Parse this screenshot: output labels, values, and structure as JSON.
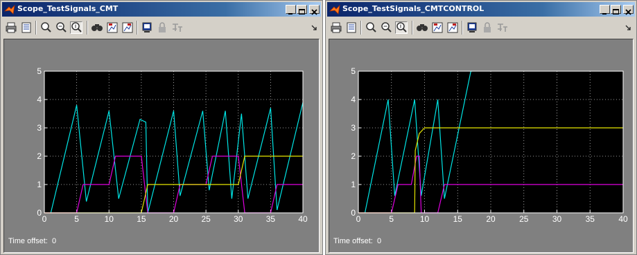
{
  "windows": [
    {
      "title": "Scope_TestSignals_CMT",
      "time_offset_label": "Time offset:",
      "time_offset_value": "0"
    },
    {
      "title": "Scope_TestSignals_CMTCONTROL",
      "time_offset_label": "Time offset:",
      "time_offset_value": "0"
    }
  ],
  "toolbar_icons": [
    "print-icon",
    "parameters-icon",
    "zoom-in-icon",
    "zoom-x-icon",
    "zoom-y-icon",
    "autoscale-icon",
    "save-axes-icon",
    "restore-axes-icon",
    "floating-scope-icon",
    "lock-axes-icon",
    "signal-selection-icon",
    "dock-arrow-icon"
  ],
  "colors": {
    "cyan": "#00e5e5",
    "magenta": "#e000e0",
    "yellow": "#e5e500",
    "plot_bg": "#000000",
    "frame_bg": "#808080"
  },
  "chart_data": [
    {
      "type": "line",
      "title": "",
      "xlim": [
        0,
        40
      ],
      "ylim": [
        0,
        5
      ],
      "xticks": [
        "0",
        "5",
        "10",
        "15",
        "20",
        "25",
        "30",
        "35",
        "40"
      ],
      "yticks": [
        "0",
        "1",
        "2",
        "3",
        "4",
        "5"
      ],
      "grid": true,
      "series": [
        {
          "color": "cyan",
          "x": [
            1,
            5,
            6.5,
            10,
            11.5,
            14.8,
            15.7,
            16,
            20,
            21,
            24.5,
            25.5,
            28,
            29,
            30.5,
            31.5,
            35,
            36,
            40
          ],
          "y": [
            0,
            3.8,
            0.4,
            3.6,
            0.5,
            3.3,
            3.2,
            0,
            3.6,
            0.6,
            3.6,
            0.8,
            3.6,
            0.5,
            3.5,
            0.5,
            3.7,
            0.1,
            3.9
          ]
        },
        {
          "color": "magenta",
          "x": [
            0,
            5,
            6,
            10,
            11,
            15,
            16,
            20,
            21,
            25,
            26,
            30,
            31,
            35,
            36,
            40
          ],
          "y": [
            0,
            0,
            1,
            1,
            2,
            2,
            0,
            0,
            1,
            1,
            2,
            2,
            0,
            0,
            1,
            1
          ]
        },
        {
          "color": "yellow",
          "x": [
            0,
            15,
            16,
            30,
            31,
            40
          ],
          "y": [
            0,
            0,
            1,
            1,
            2,
            2
          ]
        }
      ]
    },
    {
      "type": "line",
      "title": "",
      "xlim": [
        0,
        40
      ],
      "ylim": [
        0,
        5
      ],
      "xticks": [
        "0",
        "5",
        "10",
        "15",
        "20",
        "25",
        "30",
        "35",
        "40"
      ],
      "yticks": [
        "0",
        "1",
        "2",
        "3",
        "4",
        "5"
      ],
      "grid": true,
      "series": [
        {
          "color": "cyan",
          "x": [
            1,
            4.5,
            5.5,
            8.5,
            9.5,
            12,
            13,
            17,
            17.2
          ],
          "y": [
            0,
            4,
            0.6,
            4,
            0.6,
            4,
            0.5,
            5,
            5
          ]
        },
        {
          "color": "magenta",
          "x": [
            0,
            5,
            6,
            8,
            8.8,
            9.2,
            9.5,
            12,
            13,
            40
          ],
          "y": [
            0,
            0,
            1,
            1,
            2,
            2,
            0,
            0,
            1,
            1
          ]
        },
        {
          "color": "yellow",
          "x": [
            0,
            8.5,
            8.6,
            9.2,
            10,
            40
          ],
          "y": [
            0,
            0,
            2.2,
            2.8,
            3,
            3
          ]
        }
      ]
    }
  ]
}
